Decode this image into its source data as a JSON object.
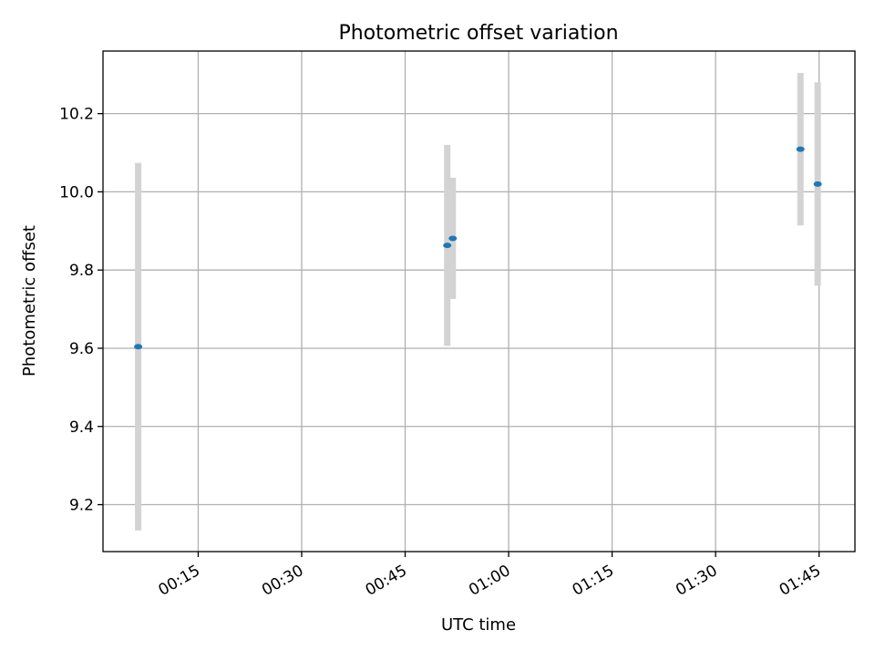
{
  "chart_data": {
    "type": "scatter",
    "title": "Photometric offset variation",
    "xlabel": "UTC time",
    "ylabel": "Photometric offset",
    "x_tick_labels": [
      "00:15",
      "00:30",
      "00:45",
      "01:00",
      "01:15",
      "01:30",
      "01:45"
    ],
    "x_tick_minutes": [
      15,
      30,
      45,
      60,
      75,
      90,
      105
    ],
    "xlim_minutes": [
      1.2,
      110.2
    ],
    "y_ticks": [
      9.2,
      9.4,
      9.6,
      9.8,
      10.0,
      10.2
    ],
    "y_tick_labels": [
      "9.2",
      "9.4",
      "9.6",
      "9.8",
      "10.0",
      "10.2"
    ],
    "ylim": [
      9.08,
      10.36
    ],
    "grid": true,
    "point_color": "#1f77b4",
    "errorbar_color": "#d3d3d3",
    "points": [
      {
        "t": "00:06",
        "minutes": 6.3,
        "y": 9.604,
        "err": 0.47
      },
      {
        "t": "00:51",
        "minutes": 51.1,
        "y": 9.863,
        "err": 0.257
      },
      {
        "t": "00:52",
        "minutes": 51.9,
        "y": 9.881,
        "err": 0.155
      },
      {
        "t": "01:42",
        "minutes": 102.3,
        "y": 10.109,
        "err": 0.195
      },
      {
        "t": "01:44",
        "minutes": 104.8,
        "y": 10.02,
        "err": 0.26
      }
    ]
  }
}
